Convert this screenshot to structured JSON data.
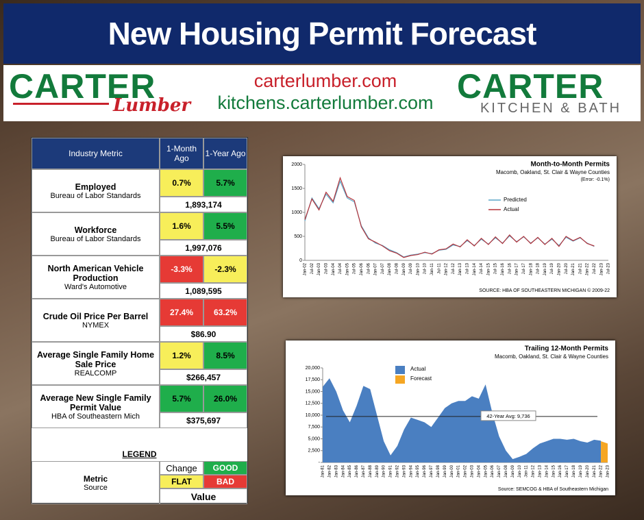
{
  "header": {
    "title": "New Housing Permit Forecast"
  },
  "logos": {
    "left_brand": "CARTER",
    "left_script": "Lumber",
    "url1": "carterlumber.com",
    "url2": "kitchens.carterlumber.com",
    "right_brand": "CARTER",
    "right_tag": "KITCHEN & BATH"
  },
  "table": {
    "header": [
      "Industry Metric",
      "1-Month Ago",
      "1-Year Ago"
    ],
    "rows": [
      {
        "metric": "Employed",
        "source": "Bureau of Labor Standards",
        "month": "0.7%",
        "month_color": "#f7ee5a",
        "year": "5.7%",
        "year_color": "#1fae4b",
        "value": "1,893,174"
      },
      {
        "metric": "Workforce",
        "source": "Bureau of Labor Standards",
        "month": "1.6%",
        "month_color": "#f7ee5a",
        "year": "5.5%",
        "year_color": "#1fae4b",
        "value": "1,997,076"
      },
      {
        "metric": "North American Vehicle Production",
        "source": "Ward's Automotive",
        "month": "-3.3%",
        "month_color": "#e63a35",
        "year": "-2.3%",
        "year_color": "#f7ee5a",
        "value": "1,089,595"
      },
      {
        "metric": "Crude Oil Price Per Barrel",
        "source": "NYMEX",
        "month": "27.4%",
        "month_color": "#e63a35",
        "year": "63.2%",
        "year_color": "#e63a35",
        "value": "$86.90"
      },
      {
        "metric": "Average Single Family Home Sale Price",
        "source": "REALCOMP",
        "month": "1.2%",
        "month_color": "#f7ee5a",
        "year": "8.5%",
        "year_color": "#1fae4b",
        "value": "$266,457"
      },
      {
        "metric": "Average New Single Family Permit Value",
        "source": "HBA of Southeastern Mich",
        "month": "5.7%",
        "month_color": "#1fae4b",
        "year": "26.0%",
        "year_color": "#1fae4b",
        "value": "$375,697"
      }
    ],
    "legend": {
      "title": "LEGEND",
      "metric": "Metric",
      "source": "Source",
      "change": "Change",
      "good": "GOOD",
      "good_color": "#1fae4b",
      "flat": "FLAT",
      "flat_color": "#f7ee5a",
      "bad": "BAD",
      "bad_color": "#e63a35",
      "value": "Value"
    }
  },
  "chart_data": [
    {
      "type": "line",
      "title": "Month-to-Month Permits",
      "subtitle": "Macomb, Oakland, St. Clair & Wayne Counties",
      "note": "(Error: -0.1%)",
      "source": "SOURCE: HBA OF SOUTHEASTERN MICHIGAN © 2009-22",
      "categories": [
        "Jan-02",
        "Jul-02",
        "Jan-03",
        "Jul-03",
        "Jan-04",
        "Jul-04",
        "Jan-05",
        "Jul-05",
        "Jan-06",
        "Jul-06",
        "Jan-07",
        "Jul-07",
        "Jan-08",
        "Jul-08",
        "Jan-09",
        "Jul-09",
        "Jan-10",
        "Jul-10",
        "Jan-11",
        "Jul-11",
        "Jan-12",
        "Jul-12",
        "Jan-13",
        "Jul-13",
        "Jan-14",
        "Jul-14",
        "Jan-15",
        "Jul-15",
        "Jan-16",
        "Jul-16",
        "Jan-17",
        "Jul-17",
        "Jan-18",
        "Jul-18",
        "Jan-19",
        "Jul-19",
        "Jan-20",
        "Jul-20",
        "Jan-21",
        "Jul-21",
        "Jan-22",
        "Jul-22",
        "Jan-23",
        "Jul-23"
      ],
      "series": [
        {
          "name": "Predicted",
          "color": "#5aa6c8",
          "values": [
            820,
            1300,
            1080,
            1380,
            1200,
            1650,
            1300,
            1220,
            720,
            470,
            360,
            310,
            220,
            160,
            70,
            110,
            130,
            160,
            140,
            210,
            230,
            320,
            290,
            410,
            310,
            440,
            340,
            470,
            360,
            510,
            390,
            490,
            360,
            470,
            340,
            440,
            310,
            480,
            400,
            470,
            360,
            290,
            null,
            null
          ]
        },
        {
          "name": "Actual",
          "color": "#b5333a",
          "values": [
            850,
            1280,
            1050,
            1420,
            1230,
            1720,
            1330,
            1250,
            700,
            450,
            380,
            300,
            200,
            150,
            60,
            100,
            120,
            170,
            130,
            220,
            240,
            340,
            280,
            430,
            300,
            460,
            330,
            490,
            350,
            530,
            380,
            500,
            350,
            480,
            330,
            460,
            290,
            500,
            410,
            480,
            350,
            300,
            null,
            null
          ]
        }
      ],
      "ylim": [
        0,
        2000
      ],
      "yticks": [
        0,
        500,
        1000,
        1500,
        2000
      ]
    },
    {
      "type": "area",
      "title": "Trailing 12-Month Permits",
      "subtitle": "Macomb, Oakland, St. Clair & Wayne Counties",
      "source": "Source: SEMCOG & HBA of Southeastern Michigan",
      "categories": [
        "Jan-81",
        "Jan-82",
        "Jan-83",
        "Jan-84",
        "Jan-85",
        "Jan-86",
        "Jan-87",
        "Jan-88",
        "Jan-89",
        "Jan-90",
        "Jan-91",
        "Jan-92",
        "Jan-93",
        "Jan-94",
        "Jan-95",
        "Jan-96",
        "Jan-97",
        "Jan-98",
        "Jan-99",
        "Jan-00",
        "Jan-01",
        "Jan-02",
        "Jan-03",
        "Jan-04",
        "Jan-05",
        "Jan-06",
        "Jan-07",
        "Jan-08",
        "Jan-09",
        "Jan-10",
        "Jan-11",
        "Jan-12",
        "Jan-13",
        "Jan-14",
        "Jan-15",
        "Jan-16",
        "Jan-17",
        "Jan-18",
        "Jan-19",
        "Jan-20",
        "Jan-21",
        "Jan-22",
        "Jan-23"
      ],
      "series": [
        {
          "name": "Actual",
          "color": "#4a7fc1",
          "values": [
            16000,
            17800,
            15000,
            11000,
            8500,
            12000,
            16200,
            15500,
            10000,
            4500,
            1500,
            3500,
            7000,
            9500,
            9000,
            8500,
            7500,
            9500,
            11500,
            12500,
            13000,
            13000,
            14000,
            13500,
            16500,
            10500,
            5500,
            2500,
            700,
            1200,
            1800,
            3000,
            4000,
            4500,
            5000,
            5000,
            4800,
            5000,
            4500,
            4200,
            4800,
            4600,
            null
          ]
        },
        {
          "name": "Forecast",
          "color": "#f5a623",
          "values": [
            null,
            null,
            null,
            null,
            null,
            null,
            null,
            null,
            null,
            null,
            null,
            null,
            null,
            null,
            null,
            null,
            null,
            null,
            null,
            null,
            null,
            null,
            null,
            null,
            null,
            null,
            null,
            null,
            null,
            null,
            null,
            null,
            null,
            null,
            null,
            null,
            null,
            null,
            null,
            null,
            null,
            4500,
            4000
          ]
        }
      ],
      "ylim": [
        0,
        20000
      ],
      "yticks": [
        {
          "value": 0,
          "label": "-"
        },
        {
          "value": 2500,
          "label": "2,500"
        },
        {
          "value": 5000,
          "label": "5,000"
        },
        {
          "value": 7500,
          "label": "7,500"
        },
        {
          "value": 10000,
          "label": "10,000"
        },
        {
          "value": 12500,
          "label": "12,500"
        },
        {
          "value": 15000,
          "label": "15,000"
        },
        {
          "value": 17500,
          "label": "17,500"
        },
        {
          "value": 20000,
          "label": "20,000"
        }
      ],
      "reference_line": {
        "value": 9736,
        "label": "42-Year Avg: 9,736"
      }
    }
  ]
}
